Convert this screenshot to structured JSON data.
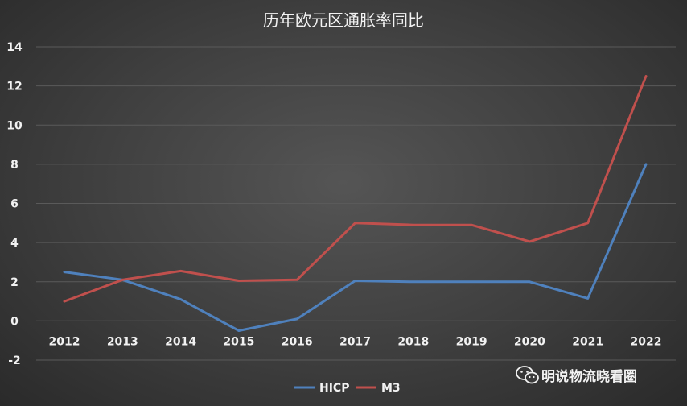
{
  "chart_data": {
    "type": "line",
    "title": "历年欧元区通胀率同比",
    "x": [
      "2012",
      "2013",
      "2014",
      "2015",
      "2016",
      "2017",
      "2018",
      "2019",
      "2020",
      "2021",
      "2022"
    ],
    "series": [
      {
        "name": "HICP",
        "color": "#4f81bd",
        "values": [
          2.5,
          2.1,
          1.1,
          -0.5,
          0.1,
          2.05,
          2.0,
          2.0,
          2.0,
          1.15,
          8.0
        ]
      },
      {
        "name": "M3",
        "color": "#c0504d",
        "values": [
          1.0,
          2.1,
          2.55,
          2.05,
          2.1,
          5.0,
          4.9,
          4.9,
          4.05,
          5.0,
          12.5
        ]
      }
    ],
    "yticks": [
      "14",
      "12",
      "10",
      "8",
      "6",
      "4",
      "2",
      "0",
      "-2"
    ],
    "ylim": [
      -2,
      14
    ],
    "grid": true,
    "legend_position": "bottom"
  },
  "watermark": {
    "text": "明说物流晓看圈",
    "icon": "wechat-icon"
  }
}
